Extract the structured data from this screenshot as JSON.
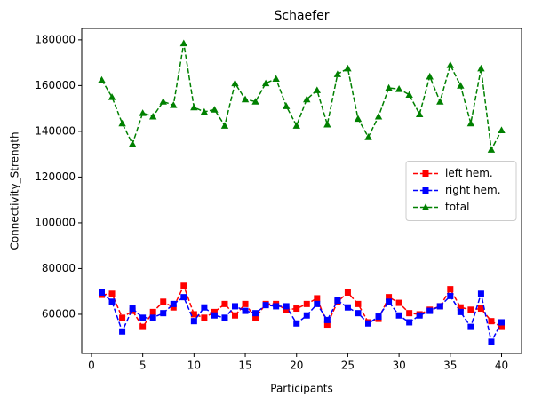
{
  "chart_data": {
    "type": "line",
    "title": "Schaefer",
    "x_label": "Participants",
    "y_label": "Connectivity_Strength",
    "x": [
      1,
      2,
      3,
      4,
      5,
      6,
      7,
      8,
      9,
      10,
      11,
      12,
      13,
      14,
      15,
      16,
      17,
      18,
      19,
      20,
      21,
      22,
      23,
      24,
      25,
      26,
      27,
      28,
      29,
      30,
      31,
      32,
      33,
      34,
      35,
      36,
      37,
      38,
      39,
      40
    ],
    "series": [
      {
        "name": "left hem.",
        "color": "#ff0000",
        "marker": "square",
        "values": [
          68500,
          69000,
          58500,
          61500,
          54500,
          61000,
          65500,
          63000,
          72500,
          60000,
          58500,
          61000,
          64500,
          59500,
          64500,
          58500,
          64500,
          64500,
          62000,
          62500,
          64500,
          67000,
          55500,
          65500,
          69500,
          64500,
          56500,
          58000,
          67500,
          65000,
          60500,
          60000,
          62000,
          63500,
          71000,
          63000,
          62000,
          62500,
          57000,
          54500
        ]
      },
      {
        "name": "right hem.",
        "color": "#0000ff",
        "marker": "square",
        "values": [
          69500,
          65500,
          52500,
          62500,
          58500,
          58500,
          60500,
          64500,
          67500,
          57000,
          63000,
          59500,
          58500,
          63500,
          61500,
          60500,
          64000,
          63500,
          63500,
          56000,
          59500,
          64500,
          57500,
          66000,
          63000,
          60500,
          56000,
          59000,
          65500,
          59500,
          56500,
          59500,
          61500,
          63500,
          68000,
          61000,
          54500,
          69000,
          48000,
          56500
        ]
      },
      {
        "name": "total",
        "color": "#008000",
        "marker": "triangle",
        "values": [
          162500,
          155000,
          143500,
          134500,
          148000,
          146500,
          153000,
          151500,
          178500,
          150500,
          148500,
          149500,
          142500,
          161000,
          154000,
          153000,
          161000,
          163000,
          151000,
          142500,
          154000,
          158000,
          143000,
          165000,
          167500,
          145500,
          137500,
          146500,
          159000,
          158500,
          156000,
          147500,
          164000,
          153000,
          169000,
          160000,
          143500,
          167500,
          132000,
          140500
        ]
      }
    ],
    "xlim": [
      -0.95,
      41.95
    ],
    "xticks": [
      0,
      5,
      10,
      15,
      20,
      25,
      30,
      35,
      40
    ],
    "ylim": [
      42900,
      185000
    ],
    "yticks": [
      60000,
      80000,
      100000,
      120000,
      140000,
      160000,
      180000
    ],
    "legend": "center right",
    "grid": false
  }
}
